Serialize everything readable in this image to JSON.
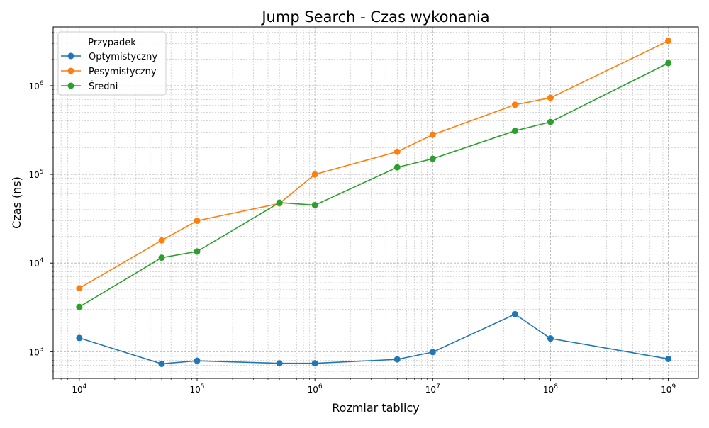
{
  "chart_data": {
    "type": "line",
    "title": "Jump Search - Czas wykonania",
    "xlabel": "Rozmiar tablicy",
    "ylabel": "Czas (ns)",
    "xscale": "log",
    "yscale": "log",
    "xlim": [
      6000,
      1800000000
    ],
    "ylim": [
      500,
      4600000
    ],
    "grid": true,
    "legend": {
      "title": "Przypadek",
      "position": "top-left"
    },
    "x_ticks": [
      {
        "value": 10000,
        "base": "10",
        "exp": "4"
      },
      {
        "value": 100000,
        "base": "10",
        "exp": "5"
      },
      {
        "value": 1000000,
        "base": "10",
        "exp": "6"
      },
      {
        "value": 10000000,
        "base": "10",
        "exp": "7"
      },
      {
        "value": 100000000,
        "base": "10",
        "exp": "8"
      },
      {
        "value": 1000000000,
        "base": "10",
        "exp": "9"
      }
    ],
    "y_ticks": [
      {
        "value": 1000,
        "base": "10",
        "exp": "3"
      },
      {
        "value": 10000,
        "base": "10",
        "exp": "4"
      },
      {
        "value": 100000,
        "base": "10",
        "exp": "5"
      },
      {
        "value": 1000000,
        "base": "10",
        "exp": "6"
      }
    ],
    "x": [
      10000,
      50000,
      100000,
      500000,
      1000000,
      5000000,
      10000000,
      50000000,
      100000000,
      1000000000
    ],
    "series": [
      {
        "name": "Optymistyczny",
        "color": "#1f77b4",
        "values": [
          1430,
          730,
          790,
          740,
          740,
          820,
          990,
          2650,
          1410,
          830
        ]
      },
      {
        "name": "Pesymistyczny",
        "color": "#ff7f0e",
        "values": [
          5200,
          18000,
          30000,
          47000,
          100000,
          180000,
          280000,
          610000,
          730000,
          3200000
        ]
      },
      {
        "name": "Średni",
        "color": "#2ca02c",
        "values": [
          3200,
          11500,
          13500,
          48000,
          45000,
          120000,
          150000,
          310000,
          390000,
          1800000
        ]
      }
    ]
  }
}
